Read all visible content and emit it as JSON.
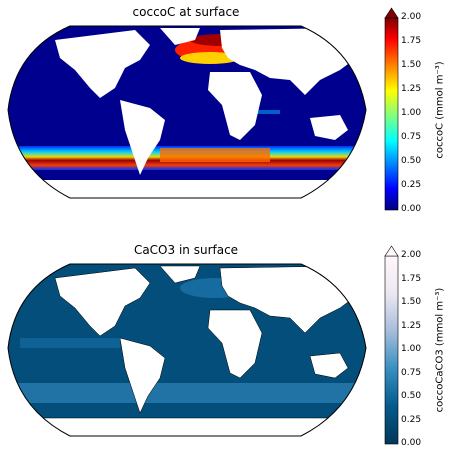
{
  "chart_data": [
    {
      "type": "heatmap",
      "title": "coccoC at surface",
      "projection": "Robinson",
      "colormap": "jet",
      "colorbar": {
        "label": "coccoC (mmol m⁻³)",
        "ticks": [
          "0.00",
          "0.25",
          "0.50",
          "0.75",
          "1.00",
          "1.25",
          "1.50",
          "1.75",
          "2.00"
        ],
        "range": [
          0,
          2.0
        ],
        "extend": "max"
      },
      "features": [
        "low values (~0.0-0.25) over most of the open ocean",
        "high values (>2.0) in Southern Ocean band ~45-55S",
        "high values (~1.5-2.0) in North Atlantic ~45-65N",
        "moderate values along coastal margins"
      ]
    },
    {
      "type": "heatmap",
      "title": "CaCO3 in surface",
      "projection": "Robinson",
      "colormap": "PuBu_r",
      "colorbar": {
        "label": "coccoCaCO3 (mmol m⁻³)",
        "ticks": [
          "0.00",
          "0.25",
          "0.50",
          "0.75",
          "1.00",
          "1.25",
          "1.50",
          "1.75",
          "2.00"
        ],
        "range": [
          0,
          2.0
        ],
        "extend": "max"
      },
      "features": [
        "values ~0.0-0.25 almost everywhere",
        "slightly higher (~0.5) in Southern Ocean band",
        "slightly higher in equatorial Pacific and North Atlantic"
      ]
    }
  ]
}
